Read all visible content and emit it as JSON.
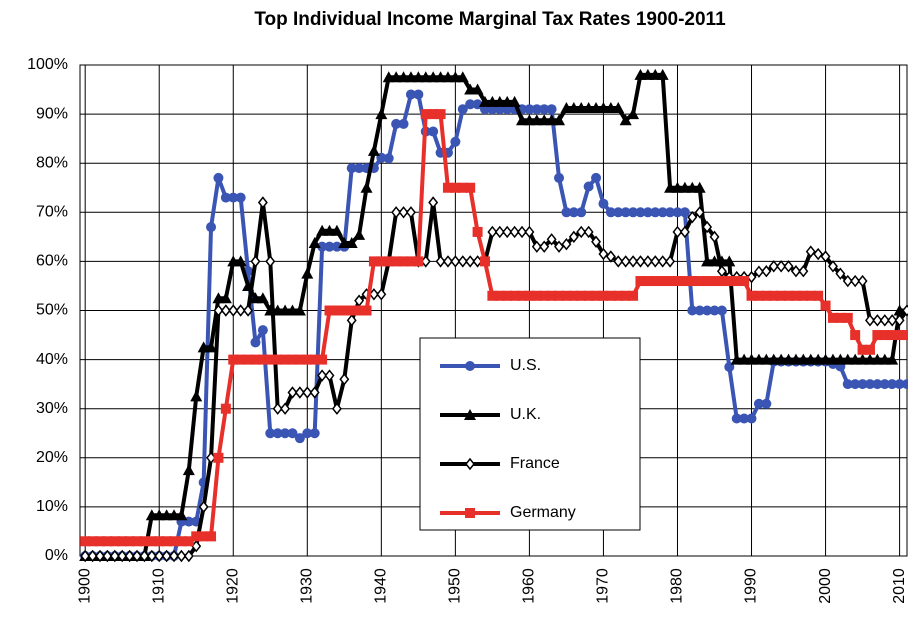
{
  "chart_data": {
    "type": "line",
    "title": "Top Individual Income Marginal Tax Rates 1900-2011",
    "x": [
      1900,
      1901,
      1902,
      1903,
      1904,
      1905,
      1906,
      1907,
      1908,
      1909,
      1910,
      1911,
      1912,
      1913,
      1914,
      1915,
      1916,
      1917,
      1918,
      1919,
      1920,
      1921,
      1922,
      1923,
      1924,
      1925,
      1926,
      1927,
      1928,
      1929,
      1930,
      1931,
      1932,
      1933,
      1934,
      1935,
      1936,
      1937,
      1938,
      1939,
      1940,
      1941,
      1942,
      1943,
      1944,
      1945,
      1946,
      1947,
      1948,
      1949,
      1950,
      1951,
      1952,
      1953,
      1954,
      1955,
      1956,
      1957,
      1958,
      1959,
      1960,
      1961,
      1962,
      1963,
      1964,
      1965,
      1966,
      1967,
      1968,
      1969,
      1970,
      1971,
      1972,
      1973,
      1974,
      1975,
      1976,
      1977,
      1978,
      1979,
      1980,
      1981,
      1982,
      1983,
      1984,
      1985,
      1986,
      1987,
      1988,
      1989,
      1990,
      1991,
      1992,
      1993,
      1994,
      1995,
      1996,
      1997,
      1998,
      1999,
      2000,
      2001,
      2002,
      2003,
      2004,
      2005,
      2006,
      2007,
      2008,
      2009,
      2010,
      2011
    ],
    "series": [
      {
        "name": "U.S.",
        "color": "#3a55b4",
        "marker": "circle",
        "values": [
          0,
          0,
          0,
          0,
          0,
          0,
          0,
          0,
          0,
          0,
          0,
          0,
          0,
          7,
          7,
          7,
          15,
          67,
          77,
          73,
          73,
          73,
          58,
          43.5,
          46,
          25,
          25,
          25,
          25,
          24,
          25,
          25,
          63,
          63,
          63,
          63,
          79,
          79,
          79,
          79,
          81.1,
          81,
          88,
          88,
          94,
          94,
          86.45,
          86.45,
          82.13,
          82.13,
          84.36,
          91,
          92,
          92,
          91,
          91,
          91,
          91,
          91,
          91,
          91,
          91,
          91,
          91,
          77,
          70,
          70,
          70,
          75.25,
          77,
          71.75,
          70,
          70,
          70,
          70,
          70,
          70,
          70,
          70,
          70,
          70,
          70,
          50,
          50,
          50,
          50,
          50,
          38.5,
          28,
          28,
          28,
          31,
          31,
          39.6,
          39.6,
          39.6,
          39.6,
          39.6,
          39.6,
          39.6,
          39.6,
          39.1,
          38.6,
          35,
          35,
          35,
          35,
          35,
          35,
          35,
          35,
          35
        ]
      },
      {
        "name": "U.K.",
        "color": "#000000",
        "marker": "triangle",
        "values": [
          0,
          0,
          0,
          0,
          0,
          0,
          0,
          0,
          0,
          8.3,
          8.3,
          8.3,
          8.3,
          8.3,
          17.5,
          32.5,
          42.5,
          42.5,
          52.5,
          52.5,
          60,
          60,
          55,
          52.5,
          52.5,
          50,
          50,
          50,
          50,
          50,
          57.5,
          63.75,
          66.25,
          66.25,
          66.25,
          63.75,
          63.75,
          65.4,
          75,
          82.5,
          90,
          97.5,
          97.5,
          97.5,
          97.5,
          97.5,
          97.5,
          97.5,
          97.5,
          97.5,
          97.5,
          97.5,
          95,
          95,
          92.5,
          92.5,
          92.5,
          92.5,
          92.5,
          88.75,
          88.75,
          88.75,
          88.75,
          88.75,
          88.75,
          91.25,
          91.25,
          91.25,
          91.25,
          91.25,
          91.25,
          91.25,
          91.25,
          88.75,
          90,
          98,
          98,
          98,
          98,
          75,
          75,
          75,
          75,
          75,
          60,
          60,
          60,
          60,
          40,
          40,
          40,
          40,
          40,
          40,
          40,
          40,
          40,
          40,
          40,
          40,
          40,
          40,
          40,
          40,
          40,
          40,
          40,
          40,
          40,
          40,
          50,
          50
        ]
      },
      {
        "name": "France",
        "color": "#000000",
        "marker": "diamond",
        "values": [
          0,
          0,
          0,
          0,
          0,
          0,
          0,
          0,
          0,
          0,
          0,
          0,
          0,
          0,
          0,
          2,
          10,
          20,
          50,
          50,
          50,
          50,
          50,
          60,
          72,
          60,
          30,
          30,
          33.3,
          33.3,
          33.3,
          33.3,
          36.75,
          36.75,
          30,
          36,
          48,
          52,
          53.3,
          53.3,
          53.3,
          60,
          70,
          70,
          70,
          60,
          60,
          72,
          60,
          60,
          60,
          60,
          60,
          60,
          60,
          66,
          66,
          66,
          66,
          66,
          66,
          63,
          63,
          64.5,
          63,
          63.5,
          65,
          66,
          66,
          64,
          61.5,
          61,
          60,
          60,
          60,
          60,
          60,
          60,
          60,
          60,
          66,
          66,
          69,
          70,
          67,
          65,
          58,
          56.8,
          56.8,
          56.8,
          56.8,
          57.9,
          58,
          59,
          59,
          59,
          58,
          58,
          62,
          61.5,
          61,
          59,
          57.5,
          56,
          56,
          56,
          48,
          48,
          48,
          48,
          48,
          50
        ]
      },
      {
        "name": "Germany",
        "color": "#e8302a",
        "marker": "square",
        "values": [
          3,
          3,
          3,
          3,
          3,
          3,
          3,
          3,
          3,
          3,
          3,
          3,
          3,
          3,
          3,
          4,
          4,
          4,
          20,
          30,
          40,
          40,
          40,
          40,
          40,
          40,
          40,
          40,
          40,
          40,
          40,
          40,
          40,
          50,
          50,
          50,
          50,
          50,
          50,
          60,
          60,
          60,
          60,
          60,
          60,
          60,
          90,
          90,
          90,
          75,
          75,
          75,
          75,
          66,
          60,
          53,
          53,
          53,
          53,
          53,
          53,
          53,
          53,
          53,
          53,
          53,
          53,
          53,
          53,
          53,
          53,
          53,
          53,
          53,
          53,
          56,
          56,
          56,
          56,
          56,
          56,
          56,
          56,
          56,
          56,
          56,
          56,
          56,
          56,
          56,
          53,
          53,
          53,
          53,
          53,
          53,
          53,
          53,
          53,
          53,
          51,
          48.5,
          48.5,
          48.5,
          45,
          42,
          42,
          45,
          45,
          45,
          45,
          45
        ]
      }
    ],
    "xlim": [
      1899.3,
      2011
    ],
    "xticks": [
      1900,
      1910,
      1920,
      1930,
      1940,
      1950,
      1960,
      1970,
      1980,
      1990,
      2000,
      2010
    ],
    "ylim": [
      0,
      100
    ],
    "yticks": [
      {
        "value": 0,
        "label": "0%"
      },
      {
        "value": 10,
        "label": "10%"
      },
      {
        "value": 20,
        "label": "20%"
      },
      {
        "value": 30,
        "label": "30%"
      },
      {
        "value": 40,
        "label": "40%"
      },
      {
        "value": 50,
        "label": "50%"
      },
      {
        "value": 60,
        "label": "60%"
      },
      {
        "value": 70,
        "label": "70%"
      },
      {
        "value": 80,
        "label": "80%"
      },
      {
        "value": 90,
        "label": "90%"
      },
      {
        "value": 100,
        "label": "100%"
      }
    ],
    "grid": true
  }
}
